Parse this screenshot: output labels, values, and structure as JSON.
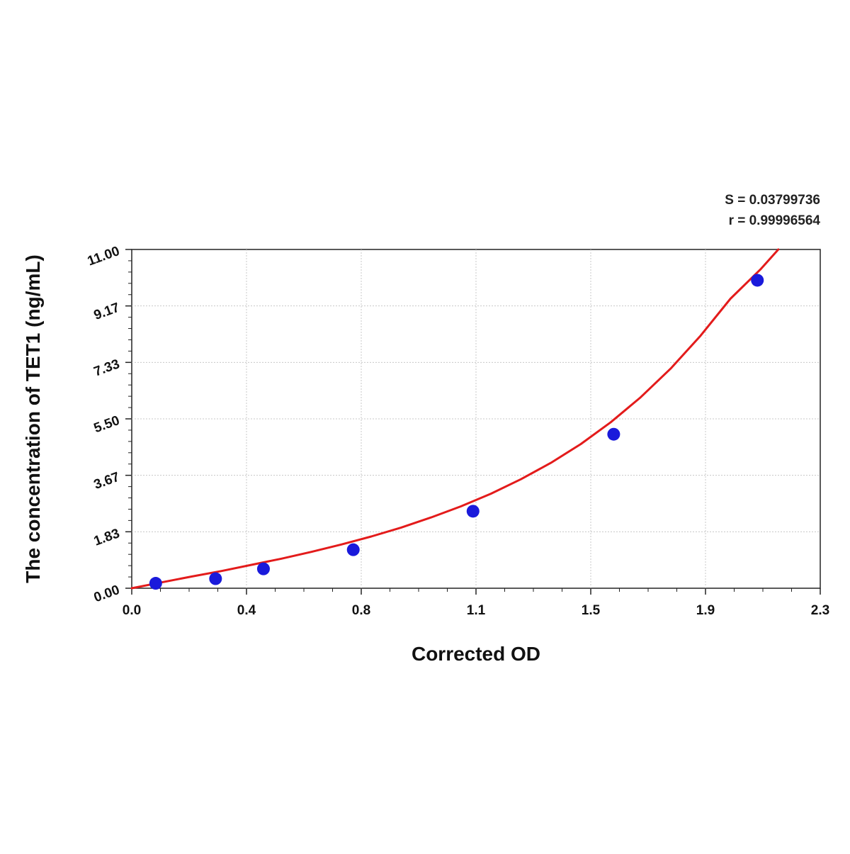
{
  "chart_data": {
    "type": "scatter",
    "title": "",
    "xlabel": "Corrected OD",
    "ylabel": "The concentration of TET1 (ng/mL)",
    "xlim": [
      0.0,
      2.3
    ],
    "ylim": [
      0.0,
      11.0
    ],
    "x_ticks": [
      "0.0",
      "0.4",
      "0.8",
      "1.1",
      "1.5",
      "1.9",
      "2.3"
    ],
    "y_ticks": [
      "0.00",
      "1.83",
      "3.67",
      "5.50",
      "7.33",
      "9.17",
      "11.00"
    ],
    "grid": true,
    "stats": {
      "s_text": "S = 0.03799736",
      "r_text": "r = 0.99996564"
    },
    "points": [
      {
        "x": 0.08,
        "y": 0.16
      },
      {
        "x": 0.28,
        "y": 0.31
      },
      {
        "x": 0.44,
        "y": 0.63
      },
      {
        "x": 0.74,
        "y": 1.25
      },
      {
        "x": 1.14,
        "y": 2.5
      },
      {
        "x": 1.61,
        "y": 5.0
      },
      {
        "x": 2.09,
        "y": 10.0
      }
    ],
    "fit_curve": {
      "color": "#e31b1b",
      "x": [
        0.0,
        0.1,
        0.2,
        0.3,
        0.4,
        0.5,
        0.6,
        0.7,
        0.8,
        0.9,
        1.0,
        1.1,
        1.2,
        1.3,
        1.4,
        1.5,
        1.6,
        1.7,
        1.8,
        1.9,
        2.0,
        2.1,
        2.16
      ],
      "y": [
        0.0,
        0.19,
        0.38,
        0.56,
        0.76,
        0.96,
        1.18,
        1.42,
        1.68,
        1.97,
        2.3,
        2.66,
        3.07,
        3.54,
        4.07,
        4.68,
        5.39,
        6.2,
        7.13,
        8.2,
        9.4,
        10.35,
        11.0
      ]
    },
    "point_color": "#1a1adb"
  }
}
